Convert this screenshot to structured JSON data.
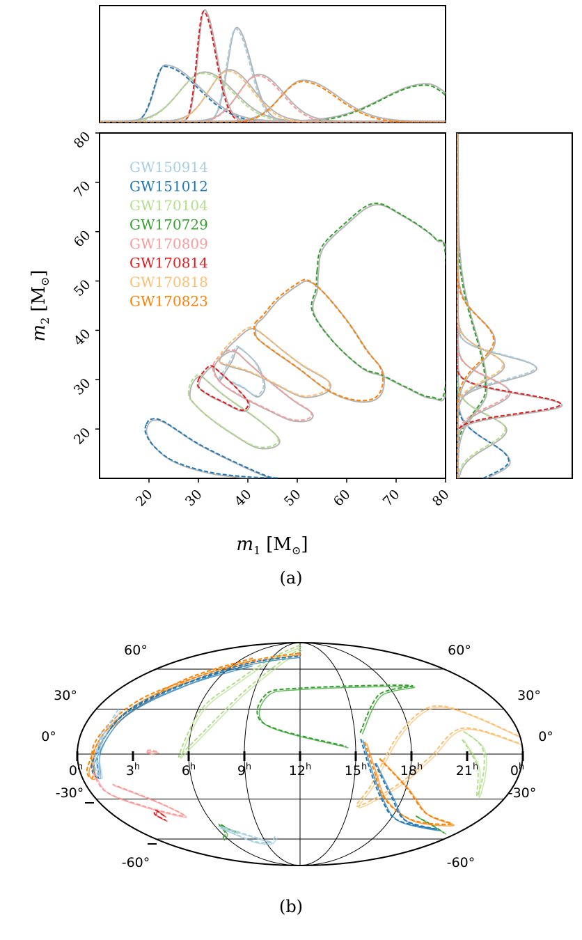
{
  "panel_a_label": "(a)",
  "panel_b_label": "(b)",
  "chart_data": [
    {
      "type": "contour",
      "title": "",
      "xlabel": "m_1 [M_⊙]",
      "ylabel": "m_2 [M_⊙]",
      "xlabel_text": {
        "sym": "m",
        "sub": "1",
        "unit": "[M",
        "unit_sub": "⊙",
        "close": "]"
      },
      "ylabel_text": {
        "sym": "m",
        "sub": "2",
        "unit": "[M",
        "unit_sub": "⊙",
        "close": "]"
      },
      "xlim": [
        10,
        80
      ],
      "ylim": [
        10,
        80
      ],
      "xticks": [
        "20",
        "30",
        "40",
        "50",
        "60",
        "70",
        "80"
      ],
      "yticks": [
        "20",
        "30",
        "40",
        "50",
        "60",
        "70",
        "80"
      ],
      "legend_position": "top-left",
      "series": [
        {
          "name": "GW150914",
          "color": "#a6cee3",
          "m1_peak": 37.5,
          "m2_peak": 32.5,
          "contour": [
            [
              34,
              30
            ],
            [
              36.5,
              34
            ],
            [
              37.5,
              36.5
            ],
            [
              38.5,
              36.4
            ],
            [
              41.5,
              33.5
            ],
            [
              43,
              30
            ],
            [
              43,
              28
            ],
            [
              41.5,
              26.8
            ],
            [
              39,
              28.5
            ],
            [
              36,
              30
            ],
            [
              35,
              31
            ]
          ]
        },
        {
          "name": "GW151012",
          "color": "#1f78b4",
          "m1_peak": 23,
          "m2_peak": 13.5,
          "contour": [
            [
              19.5,
              21
            ],
            [
              20.5,
              22
            ],
            [
              23,
              21.5
            ],
            [
              30,
              17
            ],
            [
              38,
              13
            ],
            [
              44,
              10.4
            ],
            [
              46,
              10.1
            ],
            [
              40,
              10.3
            ],
            [
              32,
              11.3
            ],
            [
              25,
              13.5
            ],
            [
              21,
              16.5
            ],
            [
              19.3,
              19.3
            ]
          ]
        },
        {
          "name": "GW170104",
          "color": "#b2df8a",
          "m1_peak": 31,
          "m2_peak": 20,
          "contour": [
            [
              28,
              27
            ],
            [
              28.5,
              29.5
            ],
            [
              30,
              31
            ],
            [
              31.5,
              30
            ],
            [
              35,
              27
            ],
            [
              42,
              22
            ],
            [
              46,
              18.3
            ],
            [
              45,
              16.6
            ],
            [
              41.5,
              16.5
            ],
            [
              37,
              19
            ],
            [
              32,
              22.5
            ],
            [
              28.8,
              25.5
            ]
          ]
        },
        {
          "name": "GW170729",
          "color": "#33a02c",
          "m1_peak": 76,
          "m2_peak": 28,
          "contour": [
            [
              54,
              52
            ],
            [
              55,
              57
            ],
            [
              60,
              62
            ],
            [
              64,
              65.2
            ],
            [
              67,
              65.6
            ],
            [
              71,
              63.5
            ],
            [
              75,
              61
            ],
            [
              78,
              58.5
            ],
            [
              80,
              55
            ],
            [
              80,
              29
            ],
            [
              77,
              26.5
            ],
            [
              72,
              28.5
            ],
            [
              67,
              31
            ],
            [
              63,
              32.5
            ],
            [
              57,
              38
            ],
            [
              53,
              44
            ],
            [
              53.8,
              48.5
            ]
          ]
        },
        {
          "name": "GW170809",
          "color": "#fb9a99",
          "m1_peak": 42,
          "m2_peak": 27.5,
          "contour": [
            [
              33,
              33
            ],
            [
              34.5,
              35
            ],
            [
              37,
              36
            ],
            [
              40,
              33.5
            ],
            [
              44,
              30
            ],
            [
              49,
              26
            ],
            [
              52.7,
              23.5
            ],
            [
              52,
              22
            ],
            [
              48.5,
              22
            ],
            [
              44,
              24
            ],
            [
              39,
              26.5
            ],
            [
              35,
              29
            ],
            [
              33.3,
              31
            ]
          ]
        },
        {
          "name": "GW170814",
          "color": "#e31a1c",
          "m1_peak": 31,
          "m2_peak": 25,
          "contour": [
            [
              30,
              30
            ],
            [
              31.2,
              31.8
            ],
            [
              32.5,
              32.8
            ],
            [
              34,
              31.8
            ],
            [
              38,
              28
            ],
            [
              40,
              25.5
            ],
            [
              39.5,
              24
            ],
            [
              38,
              24
            ],
            [
              35,
              25.5
            ],
            [
              32,
              27
            ],
            [
              30,
              28.5
            ]
          ]
        },
        {
          "name": "GW170818",
          "color": "#fdbf6f",
          "m1_peak": 36,
          "m2_peak": 33,
          "contour": [
            [
              34,
              34
            ],
            [
              35.5,
              36.5
            ],
            [
              37.5,
              38.5
            ],
            [
              40,
              40.5
            ],
            [
              42,
              40
            ],
            [
              47,
              36
            ],
            [
              51,
              33
            ],
            [
              56,
              30
            ],
            [
              56,
              28
            ],
            [
              53,
              26.8
            ],
            [
              50,
              27
            ],
            [
              45,
              29.5
            ],
            [
              40,
              31.8
            ],
            [
              36,
              33
            ]
          ]
        },
        {
          "name": "GW170823",
          "color": "#ff7f00",
          "m1_peak": 51,
          "m2_peak": 38,
          "contour": [
            [
              41.5,
              41.5
            ],
            [
              43,
              43
            ],
            [
              46,
              46.5
            ],
            [
              50,
              49.5
            ],
            [
              52,
              50.2
            ],
            [
              55,
              48
            ],
            [
              60,
              42
            ],
            [
              64,
              36
            ],
            [
              67,
              32
            ],
            [
              67,
              28
            ],
            [
              65,
              26
            ],
            [
              61,
              26
            ],
            [
              56,
              28
            ],
            [
              50,
              32.5
            ],
            [
              45,
              36
            ],
            [
              41.8,
              38.5
            ],
            [
              41.3,
              40
            ]
          ]
        }
      ]
    },
    {
      "type": "sky-map",
      "projection": "mollweide",
      "lat_labels_left": [
        "60°",
        "30°",
        "0°",
        "-30°",
        "-60°"
      ],
      "lat_labels_right": [
        "60°",
        "30°",
        "0°",
        "-30°",
        "-60°"
      ],
      "ra_labels": [
        {
          "hours": 24,
          "text": "0",
          "sup": "h"
        },
        {
          "hours": 21,
          "text": "21",
          "sup": "h"
        },
        {
          "hours": 18,
          "text": "18",
          "sup": "h"
        },
        {
          "hours": 15,
          "text": "15",
          "sup": "h"
        },
        {
          "hours": 12,
          "text": "12",
          "sup": "h"
        },
        {
          "hours": 9,
          "text": "9",
          "sup": "h"
        },
        {
          "hours": 6,
          "text": "6",
          "sup": "h"
        },
        {
          "hours": 3,
          "text": "3",
          "sup": "h"
        },
        {
          "hours": 0,
          "text": "0",
          "sup": "h"
        }
      ],
      "meridians_hours": [
        18,
        15,
        12,
        9,
        6
      ],
      "parallels_deg": [
        60,
        30,
        0,
        -30,
        -60
      ],
      "regions": [
        {
          "name": "GW170818",
          "color": "#fdbf6f",
          "ra_dec": [
            [
              23.9,
              12
            ],
            [
              22,
              25
            ],
            [
              20.5,
              32
            ],
            [
              19,
              28
            ],
            [
              17.2,
              10
            ],
            [
              16,
              -20
            ],
            [
              15.5,
              -35
            ],
            [
              17.5,
              -20
            ],
            [
              19,
              -2
            ],
            [
              21,
              17
            ],
            [
              23.9,
              7
            ]
          ]
        },
        {
          "name": "GW170104",
          "color": "#b2df8a",
          "ra_dec": [
            [
              21,
              15
            ],
            [
              21.8,
              5
            ],
            [
              22,
              -10
            ],
            [
              22.3,
              -28
            ],
            [
              21.6,
              -8
            ],
            [
              20.8,
              10
            ]
          ]
        },
        {
          "name": "GW170104",
          "color": "#b2df8a",
          "ra_dec": [
            [
              12,
              85
            ],
            [
              9,
              70
            ],
            [
              7.5,
              50
            ],
            [
              6.2,
              30
            ],
            [
              5.5,
              0
            ],
            [
              6,
              5
            ],
            [
              8.2,
              40
            ],
            [
              10,
              65
            ],
            [
              12,
              80
            ]
          ]
        },
        {
          "name": "GW170729",
          "color": "#33a02c",
          "ra_dec": [
            [
              15.3,
              14
            ],
            [
              17,
              40
            ],
            [
              19.5,
              47
            ],
            [
              12,
              45
            ],
            [
              9.8,
              40
            ],
            [
              10,
              20
            ],
            [
              14.5,
              5
            ]
          ]
        },
        {
          "name": "GW170729",
          "color": "#33a02c",
          "ra_dec": [
            [
              19.5,
              -42
            ],
            [
              21,
              -48
            ],
            [
              23,
              -55
            ]
          ]
        },
        {
          "name": "GW170729",
          "color": "#33a02c",
          "ra_dec": [
            [
              7.2,
              -54
            ],
            [
              6.8,
              -52
            ],
            [
              6.4,
              -48
            ],
            [
              6.3,
              -55
            ],
            [
              5.5,
              -60
            ]
          ]
        },
        {
          "name": "GW170823",
          "color": "#ff7f00",
          "ra_dec": [
            [
              15.5,
              8
            ],
            [
              16,
              -10
            ],
            [
              17,
              -30
            ],
            [
              19.5,
              -45
            ],
            [
              22.5,
              -48
            ],
            [
              20,
              -40
            ],
            [
              18,
              -22
            ],
            [
              16.2,
              -2
            ]
          ]
        },
        {
          "name": "GW170823",
          "color": "#ff7f00",
          "ra_dec": [
            [
              11.9,
              75
            ],
            [
              7.5,
              68
            ],
            [
              4.5,
              55
            ],
            [
              2,
              35
            ],
            [
              0.9,
              8
            ],
            [
              0.6,
              -15
            ],
            [
              0.5,
              -8
            ],
            [
              1.5,
              20
            ],
            [
              3.5,
              50
            ],
            [
              7,
              70
            ]
          ]
        },
        {
          "name": "GW151012",
          "color": "#1f78b4",
          "ra_dec": [
            [
              15.3,
              10
            ],
            [
              15.8,
              -10
            ],
            [
              16.8,
              -30
            ],
            [
              18.5,
              -45
            ],
            [
              22,
              -52
            ],
            [
              19,
              -45
            ],
            [
              17.3,
              -28
            ],
            [
              16,
              -5
            ]
          ]
        },
        {
          "name": "GW151012",
          "color": "#1f78b4",
          "ra_dec": [
            [
              11.8,
              72
            ],
            [
              7.5,
              66
            ],
            [
              4.5,
              52
            ],
            [
              2,
              30
            ],
            [
              1.2,
              5
            ],
            [
              0.9,
              -15
            ],
            [
              0.8,
              -5
            ],
            [
              1.8,
              25
            ],
            [
              4,
              48
            ],
            [
              7.5,
              64
            ]
          ]
        },
        {
          "name": "GW150914",
          "color": "#a6cee3",
          "ra_dec": [
            [
              10,
              -58
            ],
            [
              9.3,
              -63
            ],
            [
              8,
              -62
            ],
            [
              7,
              -56
            ],
            [
              6.3,
              -50
            ],
            [
              9.5,
              -63
            ]
          ]
        },
        {
          "name": "GW150914",
          "color": "#a6cee3",
          "ra_dec": [
            [
              1.3,
              30
            ],
            [
              1.1,
              5
            ],
            [
              1.0,
              -15
            ],
            [
              0.9,
              -5
            ],
            [
              1.1,
              15
            ]
          ]
        },
        {
          "name": "GW170809",
          "color": "#fb9a99",
          "ra_dec": [
            [
              0.7,
              -12
            ],
            [
              0.9,
              -25
            ],
            [
              2.5,
              -35
            ],
            [
              4.5,
              -42
            ],
            [
              3.5,
              -32
            ],
            [
              1.5,
              -20
            ]
          ]
        },
        {
          "name": "GW170809",
          "color": "#fb9a99",
          "ra_dec": [
            [
              4.3,
              1.5
            ],
            [
              3.9,
              2.5
            ],
            [
              3.7,
              1.5
            ],
            [
              4.1,
              0.5
            ]
          ]
        },
        {
          "name": "GW170814",
          "color": "#e31a1c",
          "ra_dec": [
            [
              3.2,
              -42
            ],
            [
              3.0,
              -38
            ],
            [
              2.7,
              -41
            ],
            [
              3.0,
              -45
            ]
          ]
        }
      ]
    }
  ]
}
